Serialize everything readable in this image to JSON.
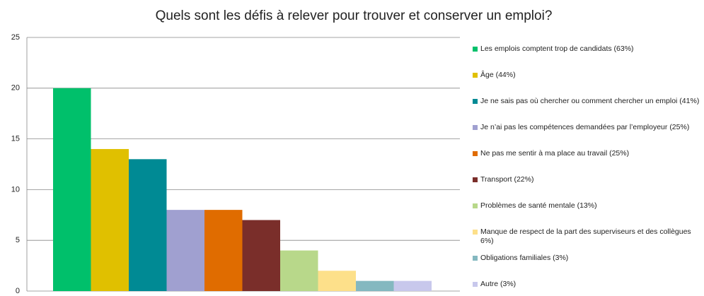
{
  "chart_data": {
    "type": "bar",
    "title": "Quels sont les défis à relever pour trouver et conserver un emploi?",
    "series": [
      {
        "name": "Les emplois comptent trop de candidats (63%)",
        "color": "#00c06b",
        "values": [
          20
        ]
      },
      {
        "name": "Âge (44%)",
        "color": "#e0c000",
        "values": [
          14
        ]
      },
      {
        "name": "Je ne sais pas où chercher ou comment chercher un emploi (41%)",
        "color": "#008a94",
        "values": [
          13
        ]
      },
      {
        "name": "Je n’ai pas les compétences demandées par l’employeur (25%)",
        "color": "#a0a0d0",
        "values": [
          8
        ]
      },
      {
        "name": "Ne pas me sentir à ma place au travail (25%)",
        "color": "#e06c00",
        "values": [
          8
        ]
      },
      {
        "name": "Transport (22%)",
        "color": "#7a2e2a",
        "values": [
          7
        ]
      },
      {
        "name": "Problèmes de santé mentale (13%)",
        "color": "#b8d88a",
        "values": [
          4
        ]
      },
      {
        "name": "Manque de respect de la part des superviseurs et des collègues 6%)",
        "color": "#fde08a",
        "values": [
          2
        ]
      },
      {
        "name": "Obligations familiales (3%)",
        "color": "#84b8c0",
        "values": [
          1
        ]
      },
      {
        "name": "Autre (3%)",
        "color": "#c8c8ec",
        "values": [
          1
        ]
      }
    ],
    "ylim": [
      0,
      25
    ],
    "yticks": [
      0,
      5,
      10,
      15,
      20,
      25
    ],
    "grid": true,
    "legend": "right"
  }
}
